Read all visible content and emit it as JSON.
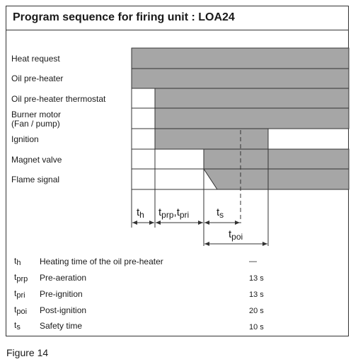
{
  "title": "Program sequence for firing unit : LOA24",
  "signals": [
    {
      "line1": "Heat request",
      "line2": ""
    },
    {
      "line1": "Oil pre-heater",
      "line2": ""
    },
    {
      "line1": "Oil pre-heater thermostat",
      "line2": ""
    },
    {
      "line1": "Burner motor",
      "line2": "(Fan / pump)"
    },
    {
      "line1": "Ignition",
      "line2": ""
    },
    {
      "line1": "Magnet valve",
      "line2": ""
    },
    {
      "line1": "Flame signal",
      "line2": ""
    }
  ],
  "time_labels": {
    "th": {
      "main": "t",
      "sub": "h"
    },
    "tprp_tpri": {
      "main1": "t",
      "sub1": "prp",
      "sep": ",",
      "main2": "t",
      "sub2": "pri"
    },
    "ts": {
      "main": "t",
      "sub": "s"
    },
    "tpoi": {
      "main": "t",
      "sub": "poi"
    }
  },
  "legend": [
    {
      "main": "t",
      "sub": "h",
      "desc": "Heating time of the oil pre-heater",
      "value": "—"
    },
    {
      "main": "t",
      "sub": "prp",
      "desc": "Pre-aeration",
      "value": "13 s"
    },
    {
      "main": "t",
      "sub": "pri",
      "desc": "Pre-ignition",
      "value": "13 s"
    },
    {
      "main": "t",
      "sub": "poi",
      "desc": "Post-ignition",
      "value": "20 s"
    },
    {
      "main": "t",
      "sub": "s",
      "desc": "Safety time",
      "value": "10 s"
    }
  ],
  "caption": "Figure 14",
  "colors": {
    "active_fill": "#a6a6a6",
    "line": "#333333"
  }
}
